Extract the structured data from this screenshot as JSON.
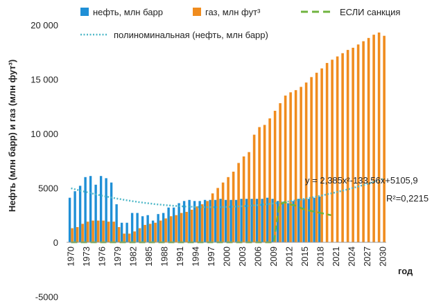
{
  "chart_data": {
    "type": "bar",
    "title": "",
    "xlabel": "год",
    "ylabel": "Нефть (млн барр) и газ (млн фут³)",
    "ylim": [
      -5000,
      20000
    ],
    "ytick_labels": [
      "-5000",
      "0",
      "5000",
      "10 000",
      "15 000",
      "20 000"
    ],
    "ytick_values": [
      -5000,
      0,
      5000,
      10000,
      15000,
      20000
    ],
    "xtick_labels": [
      "1970",
      "1973",
      "1976",
      "1979",
      "1982",
      "1985",
      "1988",
      "1991",
      "1994",
      "1997",
      "2000",
      "2003",
      "2006",
      "2009",
      "2012",
      "2015",
      "2018",
      "2021",
      "2024",
      "2027",
      "2030"
    ],
    "legend_position": "top",
    "grid": false,
    "years": [
      1970,
      1971,
      1972,
      1973,
      1974,
      1975,
      1976,
      1977,
      1978,
      1979,
      1980,
      1981,
      1982,
      1983,
      1984,
      1985,
      1986,
      1987,
      1988,
      1989,
      1990,
      1991,
      1992,
      1993,
      1994,
      1995,
      1996,
      1997,
      1998,
      1999,
      2000,
      2001,
      2002,
      2003,
      2004,
      2005,
      2006,
      2007,
      2008,
      2009,
      2010,
      2011,
      2012,
      2013,
      2014,
      2015,
      2016,
      2017,
      2018,
      2019,
      2020,
      2021,
      2022,
      2023,
      2024,
      2025,
      2026,
      2027,
      2028,
      2029,
      2030
    ],
    "series": [
      {
        "name": "нефть, млн барр",
        "color": "#1f8fd6",
        "values": [
          4100,
          4700,
          5200,
          6000,
          6100,
          5300,
          6100,
          5900,
          5500,
          3500,
          1800,
          1800,
          2700,
          2700,
          2400,
          2500,
          2000,
          2600,
          2700,
          3200,
          3200,
          3600,
          3800,
          3900,
          3800,
          3800,
          3900,
          3900,
          3900,
          4000,
          3900,
          3900,
          3900,
          4000,
          4000,
          4000,
          4000,
          4000,
          4100,
          4000,
          3800,
          3700,
          3600,
          3800,
          4000,
          4000,
          4000,
          4100,
          4200,
          null,
          null,
          null,
          null,
          null,
          null,
          null,
          null,
          null,
          null,
          null,
          null
        ]
      },
      {
        "name": "газ, млн фут³",
        "color": "#f08c1e",
        "values": [
          1300,
          1400,
          1700,
          1900,
          2000,
          2000,
          2000,
          1900,
          1900,
          1400,
          800,
          800,
          1000,
          1300,
          1600,
          1700,
          1800,
          2000,
          2200,
          2400,
          2500,
          2700,
          2800,
          3000,
          3300,
          3500,
          3800,
          4500,
          5000,
          5500,
          6000,
          6500,
          7300,
          7900,
          8300,
          9900,
          10600,
          10800,
          11400,
          12100,
          12800,
          13500,
          13800,
          14000,
          14300,
          14700,
          15200,
          15600,
          16000,
          16500,
          16800,
          17100,
          17400,
          17700,
          17900,
          18200,
          18500,
          18800,
          19100,
          19300,
          19000
        ]
      },
      {
        "name": "ЕСЛИ санкция",
        "type": "line",
        "style": "dashed",
        "color": "#6fb33e",
        "x": [
          1970,
          2008,
          2009,
          2010,
          2011,
          2012,
          2013,
          2014,
          2015,
          2016,
          2017,
          2018,
          2019,
          2020
        ],
        "values": [
          0,
          0,
          0,
          3400,
          3700,
          3500,
          3400,
          3200,
          3000,
          2900,
          2800,
          2700,
          2600,
          2500
        ]
      },
      {
        "name": "полиноминальная (нефть, млн барр)",
        "type": "line",
        "style": "dotted",
        "color": "#4fb8c8",
        "formula_t0": 1969,
        "a": 2.385,
        "b": -133.56,
        "c": 5105.9,
        "x_range": [
          1970,
          2030
        ]
      }
    ],
    "annotations": {
      "equation": "y = 2,385x²-133,56x+5105,9",
      "r_squared": "R²=0,2215"
    }
  }
}
